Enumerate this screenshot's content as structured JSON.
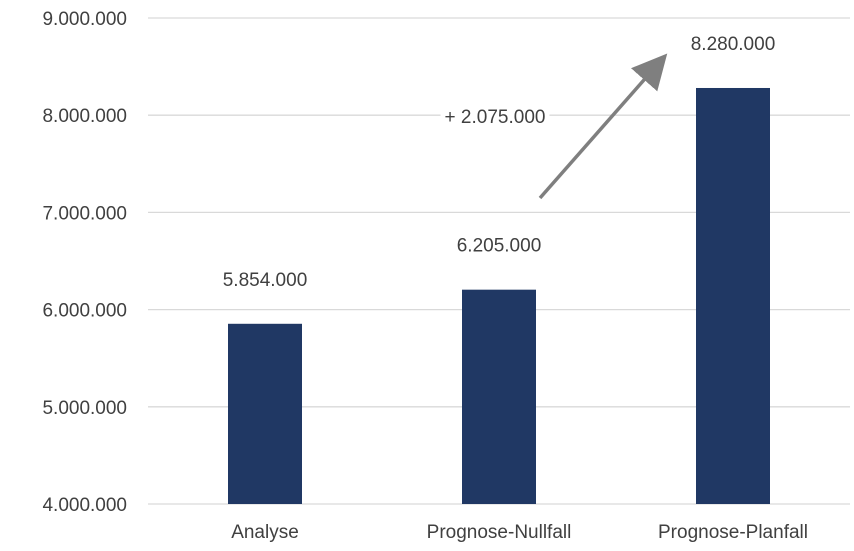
{
  "chart_data": {
    "type": "bar",
    "categories": [
      "Analyse",
      "Prognose-Nullfall",
      "Prognose-Planfall"
    ],
    "values": [
      5854000,
      6205000,
      8280000
    ],
    "data_labels": [
      "5.854.000",
      "6.205.000",
      "8.280.000"
    ],
    "yticks": [
      {
        "value": 4000000,
        "label": "4.000.000"
      },
      {
        "value": 5000000,
        "label": "5.000.000"
      },
      {
        "value": 6000000,
        "label": "6.000.000"
      },
      {
        "value": 7000000,
        "label": "7.000.000"
      },
      {
        "value": 8000000,
        "label": "8.000.000"
      },
      {
        "value": 9000000,
        "label": "9.000.000"
      }
    ],
    "ylim": [
      4000000,
      9000000
    ],
    "grid": true,
    "annotation": {
      "text": "+ 2.075.000",
      "from_category": "Prognose-Nullfall",
      "to_category": "Prognose-Planfall"
    },
    "colors": {
      "bar": "#203864",
      "grid": "#d9d9d9",
      "text": "#404040",
      "arrow": "#7f7f7f"
    }
  }
}
